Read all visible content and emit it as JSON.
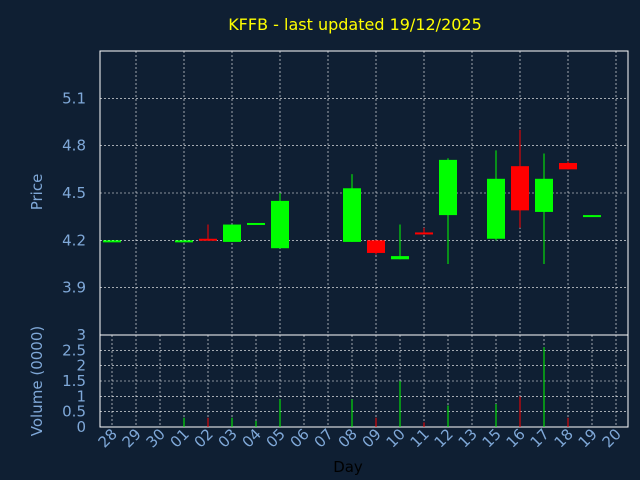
{
  "chart_data": {
    "type": "candlestick",
    "title": "KFFB - last updated 19/12/2025",
    "xlabel": "Day",
    "ylabel_price": "Price",
    "ylabel_volume": "Volume (0000)",
    "price_ylim": [
      3.6,
      5.4
    ],
    "price_ticks": [
      "3.9",
      "4.2",
      "4.5",
      "4.8",
      "5.1"
    ],
    "volume_ylim": [
      0,
      3
    ],
    "volume_ticks": [
      "0",
      "0.5",
      "1",
      "1.5",
      "2",
      "2.5",
      "3"
    ],
    "x_labels": [
      "28",
      "29",
      "30",
      "01",
      "02",
      "03",
      "04",
      "05",
      "06",
      "07",
      "08",
      "09",
      "10",
      "11",
      "12",
      "13",
      "15",
      "16",
      "17",
      "18",
      "19",
      "20"
    ],
    "colors": {
      "up": "#00ff00",
      "down": "#ff0000",
      "grid": "#ffffff",
      "background": "#0f1f33"
    },
    "candles": [
      {
        "x": 0,
        "o": 4.2,
        "h": 4.2,
        "l": 4.2,
        "c": 4.2,
        "v": 0
      },
      {
        "x": 3,
        "o": 4.19,
        "h": 4.2,
        "l": 4.19,
        "c": 4.2,
        "v": 0.3
      },
      {
        "x": 4,
        "o": 4.21,
        "h": 4.3,
        "l": 4.2,
        "c": 4.2,
        "v": 0.3
      },
      {
        "x": 5,
        "o": 4.19,
        "h": 4.3,
        "l": 4.19,
        "c": 4.3,
        "v": 0.3
      },
      {
        "x": 6,
        "o": 4.3,
        "h": 4.31,
        "l": 4.3,
        "c": 4.31,
        "v": 0.2
      },
      {
        "x": 7,
        "o": 4.15,
        "h": 4.5,
        "l": 4.15,
        "c": 4.45,
        "v": 0.9
      },
      {
        "x": 10,
        "o": 4.19,
        "h": 4.62,
        "l": 4.19,
        "c": 4.53,
        "v": 0.9
      },
      {
        "x": 11,
        "o": 4.2,
        "h": 4.2,
        "l": 4.11,
        "c": 4.12,
        "v": 0.3
      },
      {
        "x": 12,
        "o": 4.08,
        "h": 4.3,
        "l": 4.08,
        "c": 4.1,
        "v": 1.5
      },
      {
        "x": 13,
        "o": 4.25,
        "h": 4.28,
        "l": 4.24,
        "c": 4.24,
        "v": 0.15
      },
      {
        "x": 14,
        "o": 4.36,
        "h": 4.72,
        "l": 4.05,
        "c": 4.71,
        "v": 0.7
      },
      {
        "x": 16,
        "o": 4.21,
        "h": 4.77,
        "l": 4.2,
        "c": 4.59,
        "v": 0.75
      },
      {
        "x": 17,
        "o": 4.67,
        "h": 4.9,
        "l": 4.28,
        "c": 4.39,
        "v": 1.0
      },
      {
        "x": 18,
        "o": 4.38,
        "h": 4.75,
        "l": 4.05,
        "c": 4.59,
        "v": 2.6
      },
      {
        "x": 19,
        "o": 4.69,
        "h": 4.7,
        "l": 4.65,
        "c": 4.65,
        "v": 0.3
      },
      {
        "x": 20,
        "o": 4.35,
        "h": 4.36,
        "l": 4.35,
        "c": 4.36,
        "v": 0
      }
    ]
  }
}
